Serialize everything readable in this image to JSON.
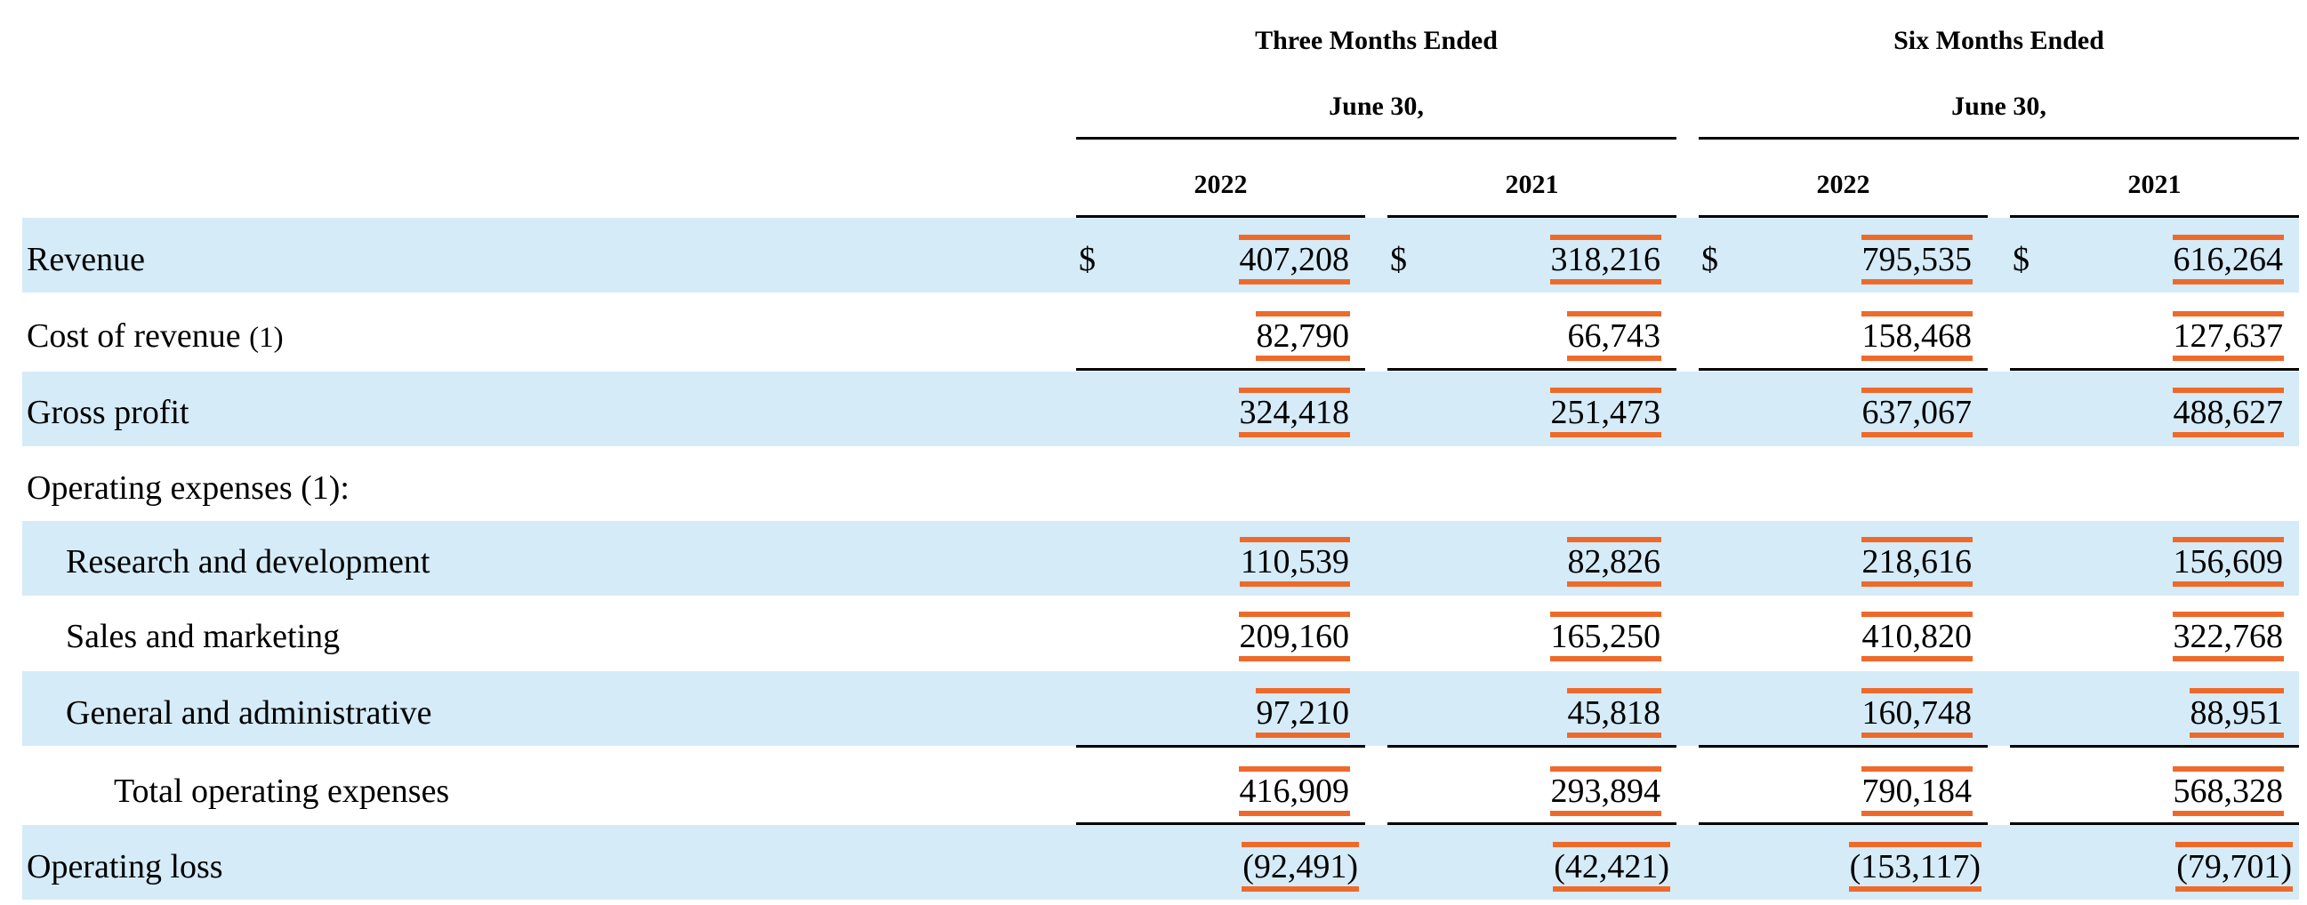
{
  "headers": {
    "group1_line1": "Three Months Ended",
    "group1_line2": "June 30,",
    "group2_line1": "Six Months Ended",
    "group2_line2": "June 30,",
    "years": [
      "2022",
      "2021",
      "2022",
      "2021"
    ]
  },
  "currency_symbol": "$",
  "highlight_color": "#ee6a2b",
  "band_color": "#d5ebf8",
  "rows": [
    {
      "label": "Revenue",
      "note": "",
      "values": [
        "407,208",
        "318,216",
        "795,535",
        "616,264"
      ]
    },
    {
      "label": "Cost of revenue",
      "note": "(1)",
      "values": [
        "82,790",
        "66,743",
        "158,468",
        "127,637"
      ]
    },
    {
      "label": "Gross profit",
      "note": "",
      "values": [
        "324,418",
        "251,473",
        "637,067",
        "488,627"
      ]
    },
    {
      "label": "Operating expenses (1):",
      "note": "",
      "values": []
    },
    {
      "label": "Research and development",
      "note": "",
      "values": [
        "110,539",
        "82,826",
        "218,616",
        "156,609"
      ]
    },
    {
      "label": "Sales and marketing",
      "note": "",
      "values": [
        "209,160",
        "165,250",
        "410,820",
        "322,768"
      ]
    },
    {
      "label": "General and administrative",
      "note": "",
      "values": [
        "97,210",
        "45,818",
        "160,748",
        "88,951"
      ]
    },
    {
      "label": "Total operating expenses",
      "note": "",
      "values": [
        "416,909",
        "293,894",
        "790,184",
        "568,328"
      ]
    },
    {
      "label": "Operating loss",
      "note": "",
      "values": [
        "(92,491)",
        "(42,421)",
        "(153,117)",
        "(79,701)"
      ]
    }
  ]
}
